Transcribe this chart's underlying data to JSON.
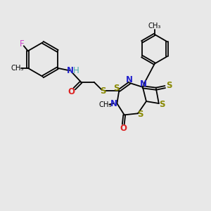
{
  "background_color": "#e8e8e8",
  "figsize": [
    3.0,
    3.0
  ],
  "dpi": 100,
  "xlim": [
    0,
    10
  ],
  "ylim": [
    0,
    10
  ]
}
